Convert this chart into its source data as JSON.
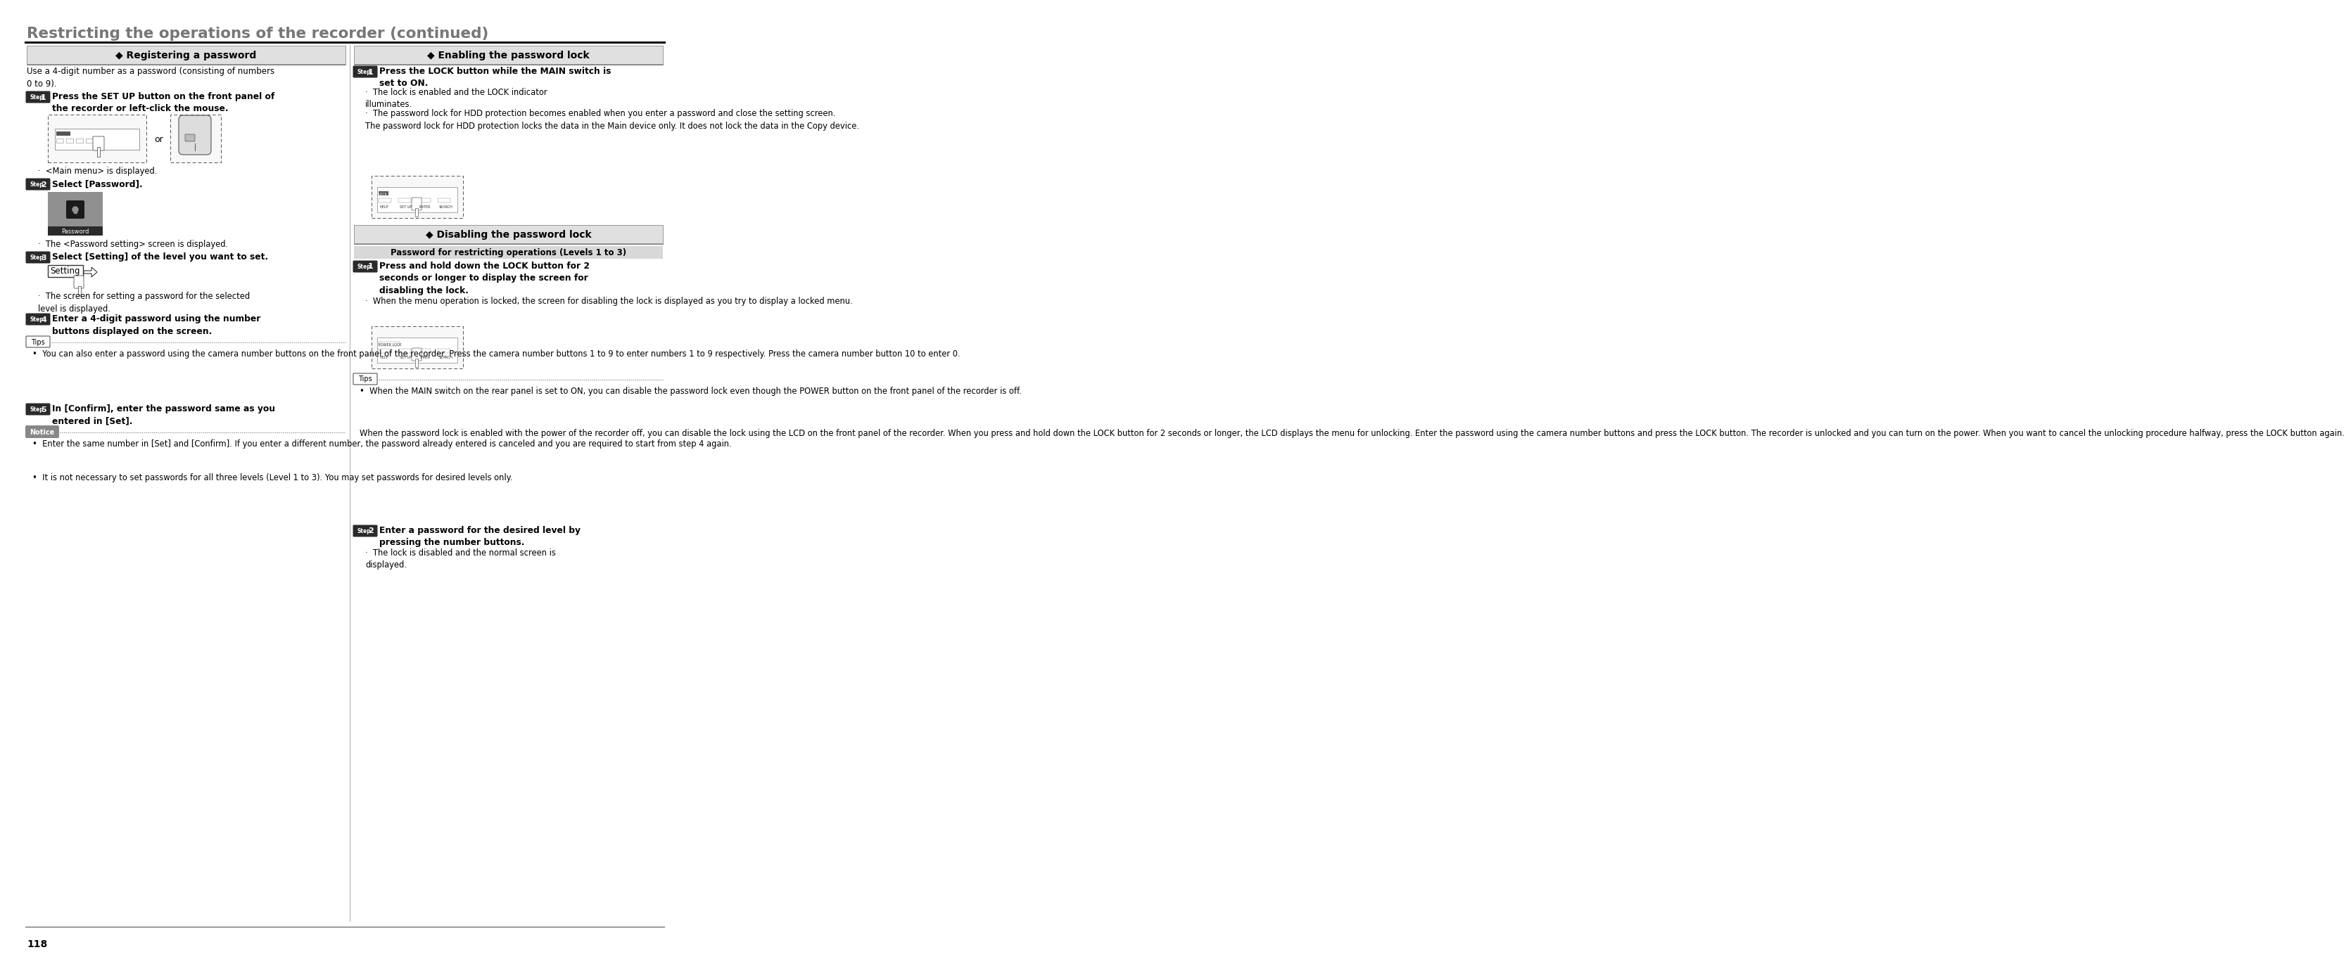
{
  "title": "Restricting the operations of the recorder (continued)",
  "page_number": "118",
  "bg": "#ffffff",
  "title_color": "#777777",
  "left_section_title": "◆ Registering a password",
  "right_section_title_1": "◆ Enabling the password lock",
  "right_section_title_2": "◆ Disabling the password lock",
  "intro_text": "Use a 4-digit number as a password (consisting of numbers\n0 to 9).",
  "step1_bold": "Press the SET UP button on the front panel of\nthe recorder or left-click the mouse.",
  "step1_bullet": "<Main menu> is displayed.",
  "step2_bold": "Select [Password].",
  "step2_bullet": "The <Password setting> screen is displayed.",
  "step3_bold": "Select [Setting] of the level you want to set.",
  "step3_bullet": "The screen for setting a password for the selected\nlevel is displayed.",
  "step4_bold": "Enter a 4-digit password using the number\nbuttons displayed on the screen.",
  "tips_left": "You can also enter a password using the camera number buttons on the front panel of the recorder. Press the camera number buttons 1 to 9 to enter numbers 1 to 9 respectively. Press the camera number button 10 to enter 0.",
  "step5_bold": "In [Confirm], enter the password same as you\nentered in [Set].",
  "notice_bullets": [
    "Enter the same number in [Set] and [Confirm]. If you enter a different number, the password already entered is canceled and you are required to start from step 4 again.",
    "It is not necessary to set passwords for all three levels (Level 1 to 3). You may set passwords for desired levels only."
  ],
  "r_step1_bold": "Press the LOCK button while the MAIN switch is\nset to ON.",
  "r_step1_b1": "The lock is enabled and the LOCK indicator\nilluminates.",
  "r_step1_b2": "The password lock for HDD protection becomes enabled when you enter a password and close the setting screen.\nThe password lock for HDD protection locks the data in the Main device only. It does not lock the data in the Copy device.",
  "r_step2_bold": "Press and hold down the LOCK button for 2\nseconds or longer to display the screen for\ndisabling the lock.",
  "r_step2_bullet": "When the menu operation is locked, the screen for disabling the lock is displayed as you try to display a locked menu.",
  "disabling_subheader": "Password for restricting operations (Levels 1 to 3)",
  "tips_right_1": "When the MAIN switch on the rear panel is set to ON, you can disable the password lock even though the POWER button on the front panel of the recorder is off.",
  "tips_right_2": "When the password lock is enabled with the power of the recorder off, you can disable the lock using the LCD on the front panel of the recorder. When you press and hold down the LOCK button for 2 seconds or longer, the LCD displays the menu for unlocking. Enter the password using the camera number buttons and press the LOCK button. The recorder is unlocked and you can turn on the power. When you want to cancel the unlocking procedure halfway, press the LOCK button again.",
  "r_step3_bold": "Enter a password for the desired level by\npressing the number buttons.",
  "r_step3_bullet": "The lock is disabled and the normal screen is\ndisplayed."
}
